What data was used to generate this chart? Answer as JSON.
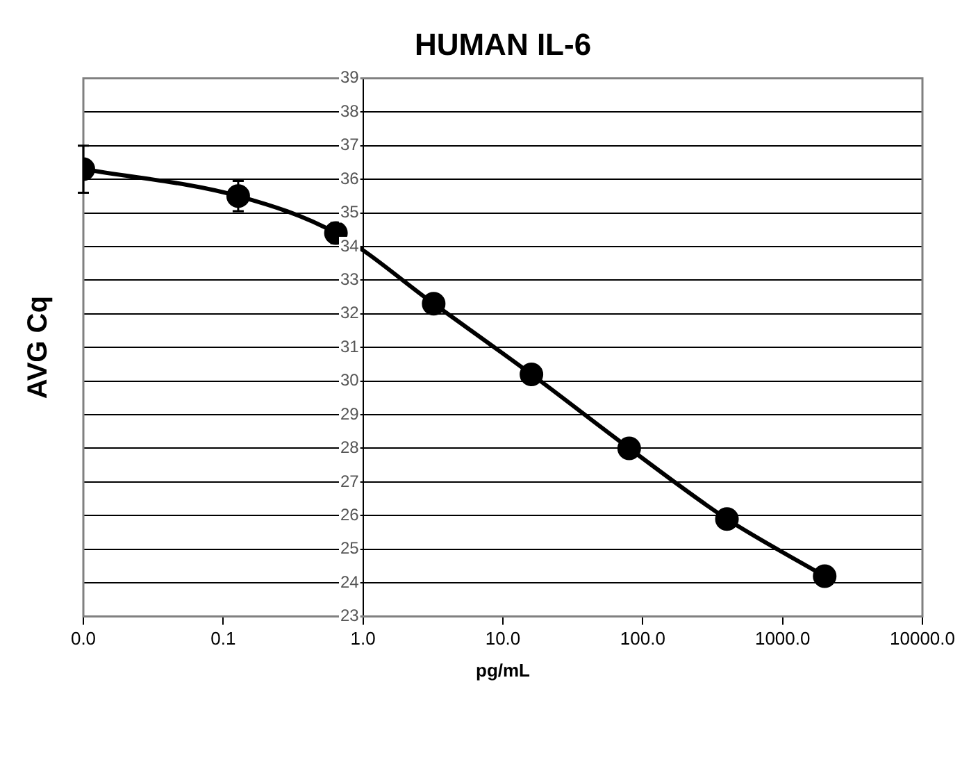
{
  "chart_data": {
    "type": "line",
    "title": "HUMAN IL-6",
    "xlabel": "pg/mL",
    "ylabel": "AVG Cq",
    "x": [
      0.01,
      0.128,
      0.64,
      3.2,
      16,
      80,
      400,
      2000
    ],
    "series": [
      {
        "color": "#000000",
        "values": [
          36.3,
          35.5,
          34.4,
          32.3,
          30.2,
          28.0,
          25.9,
          24.2
        ],
        "errors": [
          0.7,
          0.45,
          0.3,
          null,
          null,
          null,
          null,
          null
        ]
      }
    ],
    "log": "x",
    "xlim": [
      0.01,
      10000
    ],
    "xticks": [
      {
        "value": 0.01,
        "label": "0.0"
      },
      {
        "value": 0.1,
        "label": "0.1"
      },
      {
        "value": 1,
        "label": "1.0"
      },
      {
        "value": 10,
        "label": "10.0"
      },
      {
        "value": 100,
        "label": "100.0"
      },
      {
        "value": 1000,
        "label": "1000.0"
      },
      {
        "value": 10000,
        "label": "10000.0"
      }
    ],
    "ylim": [
      23,
      39
    ],
    "yticks": [
      23,
      24,
      25,
      26,
      27,
      28,
      29,
      30,
      31,
      32,
      33,
      34,
      35,
      36,
      37,
      38,
      39
    ],
    "grid": "y",
    "legend": false,
    "marker": "circle",
    "line_style": "solid"
  }
}
